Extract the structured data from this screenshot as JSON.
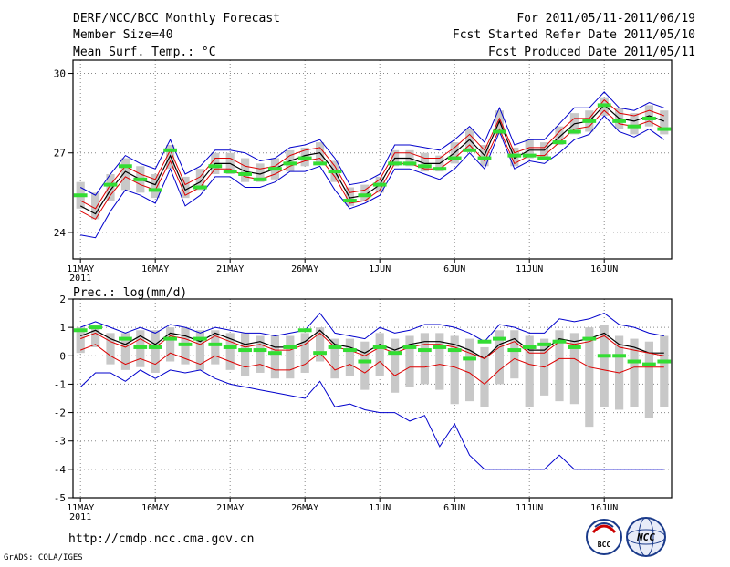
{
  "header": {
    "title": "DERF/NCC/BCC Monthly Forecast",
    "member_size": "Member Size=40",
    "variable": "Mean Surf. Temp.: °C",
    "period": "For 2011/05/11-2011/06/19",
    "started": "Fcst Started Refer Date 2011/05/10",
    "produced": "Fcst Produced Date 2011/05/11"
  },
  "footer": {
    "url": "http://cmdp.ncc.cma.gov.cn",
    "grads": "GrADS: COLA/IGES",
    "logo_bcc": "BCC",
    "logo_ncc": "NCC"
  },
  "colors": {
    "max_min": "#0000cc",
    "ensemble_mean": "#000000",
    "spread_line": "#dd0000",
    "member_bar": "#c8c8c8",
    "obs_marker": "#33dd33"
  },
  "chart_data": [
    {
      "type": "line",
      "title": "Mean Surf. Temp.: °C",
      "x": [
        1,
        2,
        3,
        4,
        5,
        6,
        7,
        8,
        9,
        10,
        11,
        12,
        13,
        14,
        15,
        16,
        17,
        18,
        19,
        20,
        21,
        22,
        23,
        24,
        25,
        26,
        27,
        28,
        29,
        30,
        31,
        32,
        33,
        34,
        35,
        36,
        37,
        38,
        39,
        40
      ],
      "xtick_positions": [
        1,
        6,
        11,
        16,
        21,
        26,
        31,
        36
      ],
      "xtick_labels": [
        "11MAY",
        "16MAY",
        "21MAY",
        "26MAY",
        "1JUN",
        "6JUN",
        "11JUN",
        "16JUN"
      ],
      "xtick_year": "2011",
      "xlim": [
        0.5,
        40.5
      ],
      "ylim": [
        23,
        30.5
      ],
      "yticks": [
        24,
        27,
        30
      ],
      "series": [
        {
          "name": "max",
          "values": [
            25.7,
            25.4,
            26.2,
            26.9,
            26.6,
            26.4,
            27.5,
            26.2,
            26.5,
            27.1,
            27.1,
            27.0,
            26.7,
            26.8,
            27.2,
            27.3,
            27.5,
            26.8,
            25.8,
            25.9,
            26.2,
            27.3,
            27.3,
            27.2,
            27.1,
            27.5,
            28.0,
            27.4,
            28.7,
            27.3,
            27.5,
            27.5,
            28.1,
            28.7,
            28.7,
            29.3,
            28.7,
            28.6,
            28.9,
            28.7
          ]
        },
        {
          "name": "upper",
          "values": [
            25.2,
            24.9,
            25.8,
            26.5,
            26.2,
            26.0,
            27.1,
            25.8,
            26.1,
            26.8,
            26.8,
            26.5,
            26.4,
            26.5,
            26.9,
            27.1,
            27.2,
            26.5,
            25.5,
            25.6,
            26.0,
            27.0,
            27.0,
            26.8,
            26.8,
            27.2,
            27.7,
            27.1,
            28.3,
            27.0,
            27.2,
            27.2,
            27.8,
            28.3,
            28.3,
            29.0,
            28.5,
            28.4,
            28.6,
            28.4
          ]
        },
        {
          "name": "mean",
          "values": [
            25.0,
            24.7,
            25.6,
            26.3,
            26.0,
            25.8,
            26.9,
            25.6,
            25.9,
            26.6,
            26.6,
            26.3,
            26.2,
            26.4,
            26.7,
            26.9,
            27.0,
            26.3,
            25.3,
            25.4,
            25.8,
            26.8,
            26.8,
            26.6,
            26.6,
            27.0,
            27.5,
            26.9,
            28.2,
            26.8,
            27.1,
            27.1,
            27.6,
            28.1,
            28.2,
            28.8,
            28.3,
            28.2,
            28.4,
            28.2
          ]
        },
        {
          "name": "lower",
          "values": [
            24.8,
            24.5,
            25.4,
            26.1,
            25.8,
            25.6,
            26.7,
            25.4,
            25.7,
            26.4,
            26.4,
            26.1,
            26.0,
            26.2,
            26.5,
            26.7,
            26.8,
            26.1,
            25.1,
            25.2,
            25.6,
            26.6,
            26.6,
            26.4,
            26.4,
            26.8,
            27.3,
            26.7,
            27.9,
            26.6,
            26.9,
            26.9,
            27.4,
            27.9,
            28.0,
            28.6,
            28.1,
            28.0,
            28.2,
            27.9
          ]
        },
        {
          "name": "min",
          "values": [
            23.9,
            23.8,
            24.8,
            25.6,
            25.4,
            25.1,
            26.4,
            25.0,
            25.4,
            26.1,
            26.1,
            25.7,
            25.7,
            25.9,
            26.3,
            26.3,
            26.5,
            25.6,
            24.9,
            25.1,
            25.4,
            26.4,
            26.4,
            26.2,
            26.0,
            26.4,
            27.0,
            26.4,
            27.8,
            26.4,
            26.7,
            26.6,
            27.0,
            27.5,
            27.7,
            28.4,
            27.8,
            27.6,
            27.9,
            27.5
          ]
        }
      ],
      "bars": [
        {
          "low": 24.9,
          "high": 25.9
        },
        {
          "low": 24.5,
          "high": 25.5
        },
        {
          "low": 25.2,
          "high": 26.2
        },
        {
          "low": 25.6,
          "high": 26.8
        },
        {
          "low": 25.5,
          "high": 26.5
        },
        {
          "low": 25.3,
          "high": 26.2
        },
        {
          "low": 26.4,
          "high": 27.3
        },
        {
          "low": 25.3,
          "high": 26.1
        },
        {
          "low": 25.6,
          "high": 26.4
        },
        {
          "low": 26.2,
          "high": 27.0
        },
        {
          "low": 26.2,
          "high": 27.0
        },
        {
          "low": 25.9,
          "high": 26.8
        },
        {
          "low": 25.9,
          "high": 26.6
        },
        {
          "low": 26.0,
          "high": 26.8
        },
        {
          "low": 26.3,
          "high": 27.1
        },
        {
          "low": 26.5,
          "high": 27.2
        },
        {
          "low": 26.6,
          "high": 27.4
        },
        {
          "low": 25.9,
          "high": 26.7
        },
        {
          "low": 25.0,
          "high": 25.7
        },
        {
          "low": 25.2,
          "high": 25.8
        },
        {
          "low": 25.5,
          "high": 26.1
        },
        {
          "low": 26.5,
          "high": 27.1
        },
        {
          "low": 26.5,
          "high": 27.1
        },
        {
          "low": 26.3,
          "high": 27.0
        },
        {
          "low": 26.3,
          "high": 26.9
        },
        {
          "low": 26.6,
          "high": 27.4
        },
        {
          "low": 27.1,
          "high": 27.9
        },
        {
          "low": 26.5,
          "high": 27.3
        },
        {
          "low": 27.7,
          "high": 28.6
        },
        {
          "low": 26.5,
          "high": 27.2
        },
        {
          "low": 26.8,
          "high": 27.5
        },
        {
          "low": 26.8,
          "high": 27.4
        },
        {
          "low": 27.3,
          "high": 28.0
        },
        {
          "low": 27.7,
          "high": 28.5
        },
        {
          "low": 27.8,
          "high": 28.6
        },
        {
          "low": 28.4,
          "high": 29.1
        },
        {
          "low": 27.9,
          "high": 28.7
        },
        {
          "low": 27.7,
          "high": 28.5
        },
        {
          "low": 28.0,
          "high": 28.8
        },
        {
          "low": 27.7,
          "high": 28.6
        }
      ],
      "markers": [
        25.4,
        null,
        25.8,
        26.5,
        26.0,
        25.6,
        27.1,
        null,
        25.7,
        26.5,
        26.3,
        26.2,
        26.0,
        26.4,
        26.6,
        26.8,
        26.6,
        26.3,
        25.2,
        25.4,
        25.8,
        26.6,
        26.6,
        26.5,
        26.4,
        26.8,
        27.1,
        26.8,
        27.8,
        26.9,
        26.9,
        26.8,
        27.4,
        27.8,
        28.2,
        28.8,
        28.2,
        28.0,
        28.3,
        27.9
      ]
    },
    {
      "type": "line",
      "title": "Prec.: log(mm/d)",
      "x": [
        1,
        2,
        3,
        4,
        5,
        6,
        7,
        8,
        9,
        10,
        11,
        12,
        13,
        14,
        15,
        16,
        17,
        18,
        19,
        20,
        21,
        22,
        23,
        24,
        25,
        26,
        27,
        28,
        29,
        30,
        31,
        32,
        33,
        34,
        35,
        36,
        37,
        38,
        39,
        40
      ],
      "xtick_positions": [
        1,
        6,
        11,
        16,
        21,
        26,
        31,
        36
      ],
      "xtick_labels": [
        "11MAY",
        "16MAY",
        "21MAY",
        "26MAY",
        "1JUN",
        "6JUN",
        "11JUN",
        "16JUN"
      ],
      "xtick_year": "2011",
      "xlim": [
        0.5,
        40.5
      ],
      "ylim": [
        -5,
        2
      ],
      "yticks": [
        -5,
        -4,
        -3,
        -2,
        -1,
        0,
        1,
        2
      ],
      "series": [
        {
          "name": "max",
          "values": [
            1.0,
            1.2,
            1.0,
            0.8,
            1.0,
            0.8,
            1.1,
            1.0,
            0.8,
            1.0,
            0.9,
            0.8,
            0.8,
            0.7,
            0.8,
            0.9,
            1.5,
            0.8,
            0.7,
            0.6,
            1.0,
            0.8,
            0.9,
            1.1,
            1.1,
            1.0,
            0.8,
            0.5,
            1.1,
            1.0,
            0.8,
            0.8,
            1.3,
            1.2,
            1.3,
            1.5,
            1.1,
            1.0,
            0.8,
            0.7
          ]
        },
        {
          "name": "mean",
          "values": [
            0.7,
            0.9,
            0.6,
            0.4,
            0.7,
            0.4,
            0.8,
            0.7,
            0.5,
            0.8,
            0.6,
            0.4,
            0.5,
            0.3,
            0.3,
            0.5,
            0.9,
            0.4,
            0.3,
            0.1,
            0.4,
            0.2,
            0.4,
            0.5,
            0.5,
            0.4,
            0.2,
            -0.1,
            0.4,
            0.6,
            0.2,
            0.2,
            0.6,
            0.5,
            0.6,
            0.8,
            0.4,
            0.3,
            0.1,
            0.1
          ]
        },
        {
          "name": "spread",
          "values": [
            0.6,
            0.8,
            0.5,
            0.3,
            0.6,
            0.3,
            0.7,
            0.6,
            0.4,
            0.7,
            0.5,
            0.3,
            0.4,
            0.2,
            0.2,
            0.4,
            0.8,
            0.3,
            0.2,
            0.0,
            0.3,
            0.1,
            0.3,
            0.4,
            0.4,
            0.3,
            0.1,
            -0.1,
            0.3,
            0.5,
            0.1,
            0.1,
            0.5,
            0.4,
            0.5,
            0.7,
            0.3,
            0.2,
            0.1,
            0.0
          ]
        },
        {
          "name": "lower",
          "values": [
            0.2,
            0.4,
            0.0,
            -0.3,
            -0.1,
            -0.3,
            0.1,
            -0.1,
            -0.3,
            0.0,
            -0.2,
            -0.4,
            -0.3,
            -0.5,
            -0.5,
            -0.3,
            0.1,
            -0.5,
            -0.3,
            -0.6,
            -0.2,
            -0.7,
            -0.4,
            -0.4,
            -0.3,
            -0.4,
            -0.6,
            -1.0,
            -0.5,
            -0.1,
            -0.3,
            -0.4,
            -0.1,
            -0.1,
            -0.4,
            -0.5,
            -0.6,
            -0.4,
            -0.4,
            -0.4
          ]
        },
        {
          "name": "min",
          "values": [
            -1.1,
            -0.6,
            -0.6,
            -0.9,
            -0.5,
            -0.8,
            -0.5,
            -0.6,
            -0.5,
            -0.8,
            -1.0,
            -1.1,
            -1.2,
            -1.3,
            -1.4,
            -1.5,
            -0.9,
            -1.8,
            -1.7,
            -1.9,
            -2.0,
            -2.0,
            -2.3,
            -2.1,
            -3.2,
            -2.4,
            -3.5,
            -4.0,
            -4.0,
            -4.0,
            -4.0,
            -4.0,
            -3.5,
            -4.0,
            -4.0,
            -4.0,
            -4.0,
            -4.0,
            -4.0,
            -4.0
          ]
        }
      ],
      "bars": [
        {
          "low": 0.1,
          "high": 1.0
        },
        {
          "low": 0.3,
          "high": 1.1
        },
        {
          "low": -0.3,
          "high": 0.8
        },
        {
          "low": -0.5,
          "high": 0.8
        },
        {
          "low": -0.4,
          "high": 0.9
        },
        {
          "low": -0.6,
          "high": 0.9
        },
        {
          "low": -0.2,
          "high": 1.0
        },
        {
          "low": -0.3,
          "high": 1.0
        },
        {
          "low": -0.5,
          "high": 0.9
        },
        {
          "low": -0.3,
          "high": 0.9
        },
        {
          "low": -0.5,
          "high": 0.8
        },
        {
          "low": -0.7,
          "high": 0.8
        },
        {
          "low": -0.6,
          "high": 0.7
        },
        {
          "low": -0.8,
          "high": 0.7
        },
        {
          "low": -0.8,
          "high": 0.7
        },
        {
          "low": -0.6,
          "high": 0.8
        },
        {
          "low": -0.2,
          "high": 1.0
        },
        {
          "low": -0.8,
          "high": 0.6
        },
        {
          "low": -0.7,
          "high": 0.6
        },
        {
          "low": -1.2,
          "high": 0.5
        },
        {
          "low": -0.7,
          "high": 0.8
        },
        {
          "low": -1.3,
          "high": 0.6
        },
        {
          "low": -1.1,
          "high": 0.7
        },
        {
          "low": -1.0,
          "high": 0.8
        },
        {
          "low": -1.2,
          "high": 0.8
        },
        {
          "low": -1.7,
          "high": 0.7
        },
        {
          "low": -1.6,
          "high": 0.6
        },
        {
          "low": -1.8,
          "high": 0.3
        },
        {
          "low": -1.0,
          "high": 0.9
        },
        {
          "low": -0.8,
          "high": 0.9
        },
        {
          "low": -1.8,
          "high": 0.7
        },
        {
          "low": -1.4,
          "high": 0.6
        },
        {
          "low": -1.6,
          "high": 0.9
        },
        {
          "low": -1.7,
          "high": 0.8
        },
        {
          "low": -2.5,
          "high": 1.0
        },
        {
          "low": -1.8,
          "high": 1.1
        },
        {
          "low": -1.9,
          "high": 0.7
        },
        {
          "low": -1.8,
          "high": 0.6
        },
        {
          "low": -2.2,
          "high": 0.5
        },
        {
          "low": -1.8,
          "high": 0.7
        }
      ],
      "markers": [
        0.9,
        1.0,
        null,
        0.6,
        0.3,
        0.3,
        0.6,
        0.4,
        0.6,
        0.4,
        0.3,
        0.2,
        0.2,
        0.1,
        0.3,
        0.9,
        0.1,
        0.3,
        0.2,
        -0.2,
        0.3,
        0.1,
        0.3,
        0.2,
        0.3,
        0.2,
        -0.1,
        0.5,
        0.6,
        0.2,
        0.3,
        0.4,
        0.5,
        0.3,
        0.6,
        0.0,
        0.0,
        -0.2,
        -0.3,
        -0.2
      ]
    }
  ]
}
